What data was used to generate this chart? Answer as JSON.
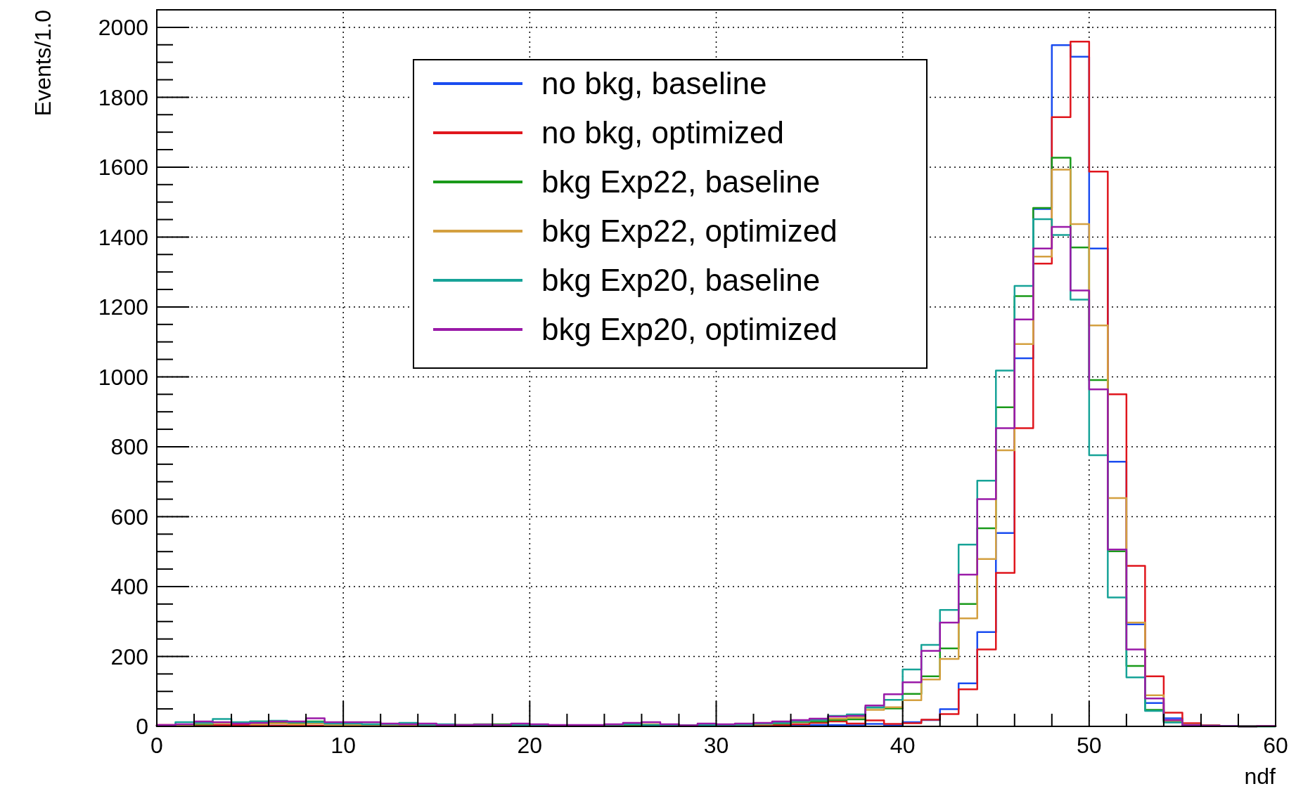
{
  "chart_data": {
    "type": "histogram",
    "xlabel": "ndf",
    "ylabel": "Events/1.0",
    "bins": [
      0,
      1,
      2,
      3,
      4,
      5,
      6,
      7,
      8,
      9,
      10,
      11,
      12,
      13,
      14,
      15,
      16,
      17,
      18,
      19,
      20,
      21,
      22,
      23,
      24,
      25,
      26,
      27,
      28,
      29,
      30,
      31,
      32,
      33,
      34,
      35,
      36,
      37,
      38,
      39,
      40,
      41,
      42,
      43,
      44,
      45,
      46,
      47,
      48,
      49,
      50,
      51,
      52,
      53,
      54,
      55,
      56,
      57,
      58,
      59,
      60
    ],
    "series": [
      {
        "name": "no bkg, baseline",
        "color": "#1a4cf0",
        "values": [
          1,
          2,
          2,
          2,
          2,
          2,
          2,
          2,
          1,
          1,
          1,
          1,
          1,
          1,
          1,
          1,
          1,
          1,
          1,
          1,
          1,
          1,
          1,
          1,
          1,
          1,
          1,
          1,
          1,
          1,
          1,
          1,
          2,
          2,
          2,
          4,
          4,
          3,
          7,
          3,
          12,
          18,
          49,
          123,
          270,
          553,
          1053,
          1480,
          1949,
          1916,
          1367,
          757,
          292,
          67,
          23,
          5,
          2,
          1,
          0,
          1
        ]
      },
      {
        "name": "no bkg, optimized",
        "color": "#e0161d",
        "values": [
          4,
          4,
          2,
          4,
          4,
          4,
          2,
          2,
          2,
          2,
          2,
          2,
          2,
          1,
          1,
          2,
          2,
          2,
          2,
          2,
          2,
          1,
          1,
          1,
          1,
          2,
          2,
          2,
          2,
          4,
          2,
          2,
          3,
          4,
          6,
          10,
          14,
          8,
          17,
          7,
          9,
          19,
          35,
          106,
          220,
          439,
          853,
          1324,
          1743,
          1959,
          1587,
          950,
          459,
          143,
          39,
          9,
          3,
          1,
          0,
          1
        ]
      },
      {
        "name": "bkg Exp22, baseline",
        "color": "#1a9a1a",
        "values": [
          1,
          4,
          6,
          10,
          10,
          14,
          10,
          10,
          14,
          8,
          6,
          6,
          6,
          4,
          6,
          4,
          4,
          6,
          6,
          4,
          2,
          2,
          2,
          2,
          3,
          4,
          4,
          5,
          2,
          6,
          4,
          4,
          6,
          8,
          12,
          14,
          18,
          20,
          54,
          51,
          93,
          143,
          223,
          350,
          567,
          913,
          1231,
          1483,
          1627,
          1370,
          991,
          501,
          173,
          47,
          14,
          4,
          2,
          1,
          0,
          0
        ]
      },
      {
        "name": "bkg Exp22, optimized",
        "color": "#d4a040",
        "values": [
          2,
          4,
          8,
          10,
          10,
          6,
          8,
          6,
          8,
          4,
          4,
          4,
          4,
          4,
          4,
          4,
          4,
          4,
          3,
          2,
          2,
          2,
          2,
          2,
          4,
          6,
          6,
          4,
          3,
          6,
          3,
          4,
          6,
          10,
          14,
          18,
          22,
          25,
          47,
          55,
          75,
          134,
          193,
          309,
          479,
          790,
          1094,
          1344,
          1593,
          1437,
          1147,
          653,
          297,
          89,
          16,
          5,
          2,
          1,
          0,
          1
        ]
      },
      {
        "name": "bkg Exp20, baseline",
        "color": "#17a398",
        "values": [
          2,
          12,
          10,
          21,
          12,
          14,
          16,
          12,
          12,
          8,
          8,
          6,
          6,
          10,
          5,
          6,
          4,
          4,
          3,
          3,
          3,
          2,
          2,
          3,
          5,
          6,
          4,
          3,
          3,
          4,
          4,
          5,
          8,
          10,
          15,
          18,
          30,
          34,
          55,
          76,
          163,
          233,
          333,
          520,
          703,
          1018,
          1260,
          1451,
          1406,
          1221,
          776,
          369,
          140,
          44,
          11,
          3,
          1,
          1,
          0,
          0
        ]
      },
      {
        "name": "bkg Exp20, optimized",
        "color": "#9a1aa8",
        "values": [
          4,
          6,
          14,
          12,
          8,
          10,
          14,
          14,
          23,
          12,
          12,
          12,
          8,
          6,
          8,
          4,
          4,
          5,
          4,
          8,
          6,
          4,
          4,
          4,
          6,
          10,
          12,
          6,
          3,
          8,
          6,
          8,
          10,
          14,
          18,
          22,
          28,
          30,
          60,
          92,
          126,
          216,
          297,
          434,
          650,
          853,
          1164,
          1367,
          1429,
          1247,
          964,
          506,
          220,
          80,
          18,
          4,
          2,
          1,
          0,
          1
        ]
      }
    ],
    "xlim": [
      0,
      60
    ],
    "xticks": [
      0,
      10,
      20,
      30,
      40,
      50,
      60
    ],
    "ylim": [
      0,
      2050
    ],
    "yticks": [
      0,
      200,
      400,
      600,
      800,
      1000,
      1200,
      1400,
      1600,
      1800,
      2000
    ],
    "grid": true,
    "legend": "top left"
  }
}
